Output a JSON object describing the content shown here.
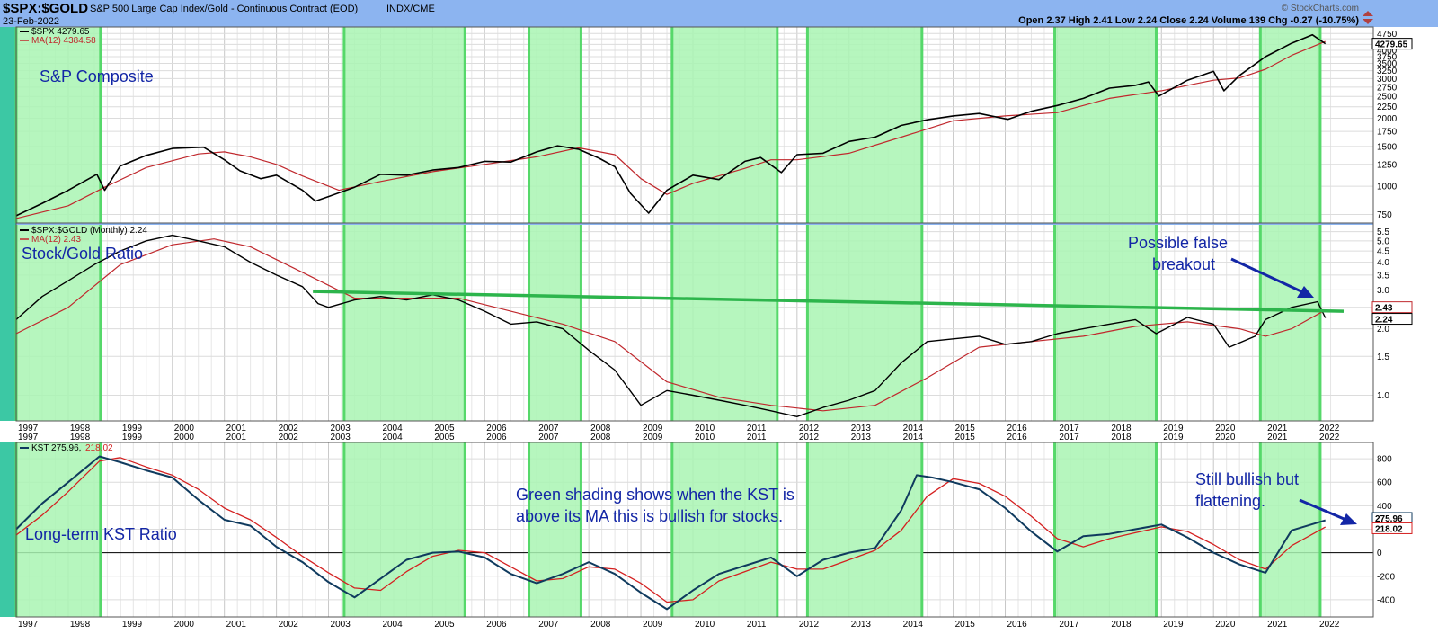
{
  "header": {
    "symbol": "$SPX:$GOLD",
    "description": "S&P 500 Large Cap Index/Gold - Continuous Contract (EOD)",
    "exchange": "INDX/CME",
    "date": "23-Feb-2022",
    "credit": "© StockCharts.com",
    "ohlc": "Open 2.37  High 2.41  Low 2.24  Close 2.24  Volume 139  Chg -0.27 (-10.75%)"
  },
  "colors": {
    "price": "#000000",
    "ma": "#c0282d",
    "kst": "#0f3a5e",
    "kst_ma": "#d42020",
    "shading_fill": "#a9f5b3",
    "shading_edge": "#56d86a",
    "trendline": "#2db54c",
    "annotation": "#1326a6",
    "background": "#ffffff",
    "frame": "#8cb4f0",
    "left_strip": "#3cc8a4"
  },
  "chart_data": [
    {
      "type": "line",
      "panel": "top",
      "label": "S&P Composite",
      "scale": "log",
      "x_range": [
        "1997",
        "2022"
      ],
      "y_ticks": [
        750,
        1000,
        1250,
        1500,
        1750,
        2000,
        2250,
        2500,
        2750,
        3000,
        3250,
        3500,
        3750,
        4000,
        4250,
        4500,
        4750
      ],
      "y_tick_labels": [
        "750",
        "1000",
        "1250",
        "1500",
        "1750",
        "2000",
        "2250",
        "2500",
        "2750",
        "3000",
        "3250",
        "3500",
        "3750",
        "4000",
        "",
        "",
        "4750"
      ],
      "legend": [
        {
          "text": "$SPX 4279.65",
          "color": "#000000"
        },
        {
          "text": "MA(12) 4384.58",
          "color": "#c0282d"
        }
      ],
      "last_value_label": "4279.65",
      "series": [
        {
          "name": "$SPX",
          "x": [
            1997.0,
            1997.5,
            1998.0,
            1998.55,
            1998.7,
            1999.0,
            1999.5,
            2000.0,
            2000.6,
            2001.0,
            2001.3,
            2001.7,
            2002.0,
            2002.5,
            2002.75,
            2003.0,
            2003.5,
            2004.0,
            2004.5,
            2005.0,
            2005.5,
            2006.0,
            2006.5,
            2007.0,
            2007.4,
            2007.8,
            2008.2,
            2008.5,
            2008.8,
            2009.15,
            2009.5,
            2010.0,
            2010.5,
            2011.0,
            2011.3,
            2011.7,
            2012.0,
            2012.5,
            2013.0,
            2013.5,
            2014.0,
            2014.5,
            2015.0,
            2015.5,
            2016.05,
            2016.5,
            2017.0,
            2017.5,
            2018.0,
            2018.5,
            2018.75,
            2018.95,
            2019.5,
            2020.0,
            2020.2,
            2020.5,
            2021.0,
            2021.5,
            2021.9,
            2022.15
          ],
          "values": [
            740,
            840,
            960,
            1130,
            960,
            1230,
            1370,
            1470,
            1490,
            1310,
            1170,
            1080,
            1120,
            960,
            860,
            900,
            990,
            1130,
            1120,
            1180,
            1210,
            1290,
            1280,
            1420,
            1510,
            1460,
            1330,
            1220,
            930,
            760,
            960,
            1120,
            1070,
            1290,
            1340,
            1150,
            1380,
            1400,
            1580,
            1650,
            1860,
            1970,
            2050,
            2100,
            1980,
            2150,
            2280,
            2450,
            2720,
            2800,
            2900,
            2510,
            2950,
            3230,
            2650,
            3100,
            3750,
            4300,
            4690,
            4280
          ]
        },
        {
          "name": "MA(12)",
          "x": [
            1997.0,
            1998.0,
            1998.7,
            1999.5,
            2000.5,
            2001.0,
            2001.5,
            2002.0,
            2002.5,
            2003.2,
            2004.0,
            2005.0,
            2006.0,
            2007.0,
            2007.8,
            2008.5,
            2009.0,
            2009.5,
            2010.0,
            2011.0,
            2011.5,
            2012.0,
            2013.0,
            2014.0,
            2015.0,
            2016.0,
            2017.0,
            2018.0,
            2019.0,
            2019.5,
            2020.0,
            2020.5,
            2021.0,
            2021.5,
            2022.15
          ],
          "values": [
            720,
            820,
            990,
            1210,
            1390,
            1420,
            1350,
            1250,
            1110,
            960,
            1050,
            1160,
            1250,
            1350,
            1480,
            1380,
            1080,
            920,
            1030,
            1200,
            1310,
            1310,
            1400,
            1650,
            1950,
            2050,
            2120,
            2450,
            2650,
            2800,
            2950,
            3020,
            3300,
            3800,
            4380
          ]
        }
      ]
    },
    {
      "type": "line",
      "panel": "middle",
      "label": "Stock/Gold Ratio",
      "scale": "log",
      "x_range": [
        "1997",
        "2022"
      ],
      "y_ticks": [
        1.0,
        1.5,
        2.0,
        2.5,
        3.0,
        3.5,
        4.0,
        4.5,
        5.0,
        5.5
      ],
      "y_tick_labels": [
        "1.0",
        "1.5",
        "2.0",
        "2.5",
        "3.0",
        "3.5",
        "4.0",
        "4.5",
        "5.0",
        "5.5"
      ],
      "legend": [
        {
          "text": "$SPX:$GOLD (Monthly) 2.24",
          "color": "#000000"
        },
        {
          "text": "MA(12) 2.43",
          "color": "#c0282d"
        }
      ],
      "last_value_labels": [
        "2.43",
        "2.24"
      ],
      "trendline": {
        "x": [
          2002.7,
          2022.5
        ],
        "values": [
          2.95,
          2.4
        ]
      },
      "annotation": {
        "line1": "Possible false",
        "line2": "breakout"
      },
      "series": [
        {
          "name": "$SPX:$GOLD",
          "x": [
            1997.0,
            1997.5,
            1998.0,
            1998.5,
            1999.0,
            1999.5,
            2000.0,
            2000.5,
            2001.0,
            2001.5,
            2002.0,
            2002.5,
            2002.8,
            2003.0,
            2003.5,
            2004.0,
            2004.5,
            2005.0,
            2005.5,
            2006.0,
            2006.5,
            2007.0,
            2007.5,
            2008.0,
            2008.5,
            2009.0,
            2009.5,
            2010.0,
            2010.5,
            2011.0,
            2011.5,
            2012.0,
            2012.5,
            2013.0,
            2013.5,
            2014.0,
            2014.5,
            2015.0,
            2015.5,
            2016.0,
            2016.5,
            2017.0,
            2017.5,
            2018.0,
            2018.5,
            2018.9,
            2019.5,
            2020.0,
            2020.3,
            2020.8,
            2021.0,
            2021.5,
            2022.0,
            2022.15
          ],
          "values": [
            2.2,
            2.8,
            3.3,
            3.9,
            4.5,
            5.0,
            5.3,
            5.0,
            4.7,
            4.0,
            3.5,
            3.1,
            2.6,
            2.5,
            2.7,
            2.8,
            2.7,
            2.85,
            2.7,
            2.4,
            2.1,
            2.15,
            2.0,
            1.6,
            1.3,
            0.9,
            1.05,
            1.0,
            0.95,
            0.9,
            0.85,
            0.8,
            0.88,
            0.95,
            1.05,
            1.4,
            1.75,
            1.8,
            1.85,
            1.7,
            1.75,
            1.9,
            2.0,
            2.1,
            2.2,
            1.9,
            2.25,
            2.1,
            1.65,
            1.85,
            2.2,
            2.5,
            2.65,
            2.24
          ]
        },
        {
          "name": "MA(12)",
          "x": [
            1997.0,
            1998.0,
            1999.0,
            2000.0,
            2000.8,
            2001.5,
            2002.5,
            2003.5,
            2004.5,
            2005.5,
            2006.5,
            2007.5,
            2008.5,
            2009.5,
            2010.5,
            2011.5,
            2012.5,
            2013.5,
            2014.5,
            2015.5,
            2016.5,
            2017.5,
            2018.5,
            2019.5,
            2020.5,
            2021.0,
            2021.5,
            2022.15
          ],
          "values": [
            1.9,
            2.5,
            3.9,
            4.8,
            5.1,
            4.7,
            3.6,
            2.75,
            2.75,
            2.75,
            2.4,
            2.1,
            1.75,
            1.15,
            0.98,
            0.9,
            0.85,
            0.9,
            1.2,
            1.65,
            1.75,
            1.85,
            2.05,
            2.15,
            2.0,
            1.85,
            2.0,
            2.43
          ]
        }
      ]
    },
    {
      "type": "line",
      "panel": "bottom",
      "label": "Long-term KST Ratio",
      "scale": "linear",
      "x_range": [
        "1997",
        "2022"
      ],
      "ylim": [
        -500,
        900
      ],
      "y_ticks": [
        -400,
        -200,
        0,
        200,
        400,
        600,
        800
      ],
      "y_tick_labels": [
        "-400",
        "-200",
        "0",
        "200",
        "400",
        "600",
        "800"
      ],
      "legend": [
        {
          "text": "KST 275.96,",
          "color": "#000000"
        },
        {
          "text": "218.02",
          "color": "#d42020"
        }
      ],
      "last_value_labels": [
        "275.96",
        "218.02"
      ],
      "annotation_center": {
        "line1": "Green shading shows when the KST is",
        "line2": "above its MA this is bullish for stocks."
      },
      "annotation_right": {
        "line1": "Still bullish but",
        "line2": "flattening."
      },
      "series": [
        {
          "name": "KST",
          "x": [
            1997.0,
            1997.5,
            1998.0,
            1998.6,
            1999.0,
            1999.5,
            2000.0,
            2000.5,
            2001.0,
            2001.5,
            2002.0,
            2002.5,
            2003.0,
            2003.5,
            2004.0,
            2004.5,
            2005.0,
            2005.5,
            2006.0,
            2006.5,
            2007.0,
            2007.5,
            2008.0,
            2008.5,
            2009.0,
            2009.5,
            2010.0,
            2010.5,
            2011.0,
            2011.5,
            2012.0,
            2012.5,
            2013.0,
            2013.5,
            2014.0,
            2014.3,
            2014.6,
            2015.0,
            2015.5,
            2016.0,
            2016.5,
            2017.0,
            2017.5,
            2018.0,
            2018.5,
            2019.0,
            2019.5,
            2020.0,
            2020.5,
            2021.0,
            2021.5,
            2022.15
          ],
          "values": [
            200,
            420,
            600,
            820,
            770,
            700,
            640,
            450,
            280,
            230,
            50,
            -80,
            -250,
            -380,
            -220,
            -60,
            0,
            10,
            -40,
            -180,
            -260,
            -180,
            -80,
            -180,
            -340,
            -480,
            -320,
            -180,
            -110,
            -40,
            -200,
            -60,
            0,
            40,
            360,
            660,
            640,
            600,
            540,
            380,
            180,
            10,
            140,
            160,
            200,
            240,
            130,
            0,
            -100,
            -170,
            190,
            275.96
          ]
        },
        {
          "name": "MA",
          "x": [
            1997.0,
            1997.5,
            1998.0,
            1998.6,
            1999.0,
            1999.5,
            2000.0,
            2000.5,
            2001.0,
            2001.5,
            2002.0,
            2002.5,
            2003.0,
            2003.5,
            2004.0,
            2004.5,
            2005.0,
            2005.5,
            2006.0,
            2006.5,
            2007.0,
            2007.5,
            2008.0,
            2008.5,
            2009.0,
            2009.5,
            2010.0,
            2010.5,
            2011.0,
            2011.5,
            2012.0,
            2012.5,
            2013.0,
            2013.5,
            2014.0,
            2014.5,
            2015.0,
            2015.5,
            2016.0,
            2016.5,
            2017.0,
            2017.5,
            2018.0,
            2018.5,
            2019.0,
            2019.5,
            2020.0,
            2020.5,
            2021.0,
            2021.5,
            2022.15
          ],
          "values": [
            150,
            320,
            520,
            780,
            810,
            730,
            660,
            540,
            380,
            280,
            130,
            -30,
            -170,
            -300,
            -320,
            -160,
            -30,
            20,
            0,
            -120,
            -240,
            -220,
            -120,
            -140,
            -260,
            -420,
            -400,
            -240,
            -160,
            -80,
            -140,
            -140,
            -60,
            20,
            190,
            480,
            630,
            590,
            480,
            310,
            120,
            50,
            120,
            170,
            220,
            180,
            70,
            -60,
            -140,
            60,
            218.02
          ]
        }
      ]
    }
  ],
  "x_axis": {
    "years": [
      "1997",
      "1998",
      "1999",
      "2000",
      "2001",
      "2002",
      "2003",
      "2004",
      "2005",
      "2006",
      "2007",
      "2008",
      "2009",
      "2010",
      "2011",
      "2012",
      "2013",
      "2014",
      "2015",
      "2016",
      "2017",
      "2018",
      "2019",
      "2020",
      "2021",
      "2022"
    ]
  },
  "shading": [
    [
      1997.0,
      1998.62
    ],
    [
      2003.3,
      2005.62
    ],
    [
      2006.85,
      2007.85
    ],
    [
      2009.6,
      2011.62
    ],
    [
      2012.2,
      2014.4
    ],
    [
      2016.95,
      2018.9
    ],
    [
      2020.9,
      2022.05
    ]
  ]
}
